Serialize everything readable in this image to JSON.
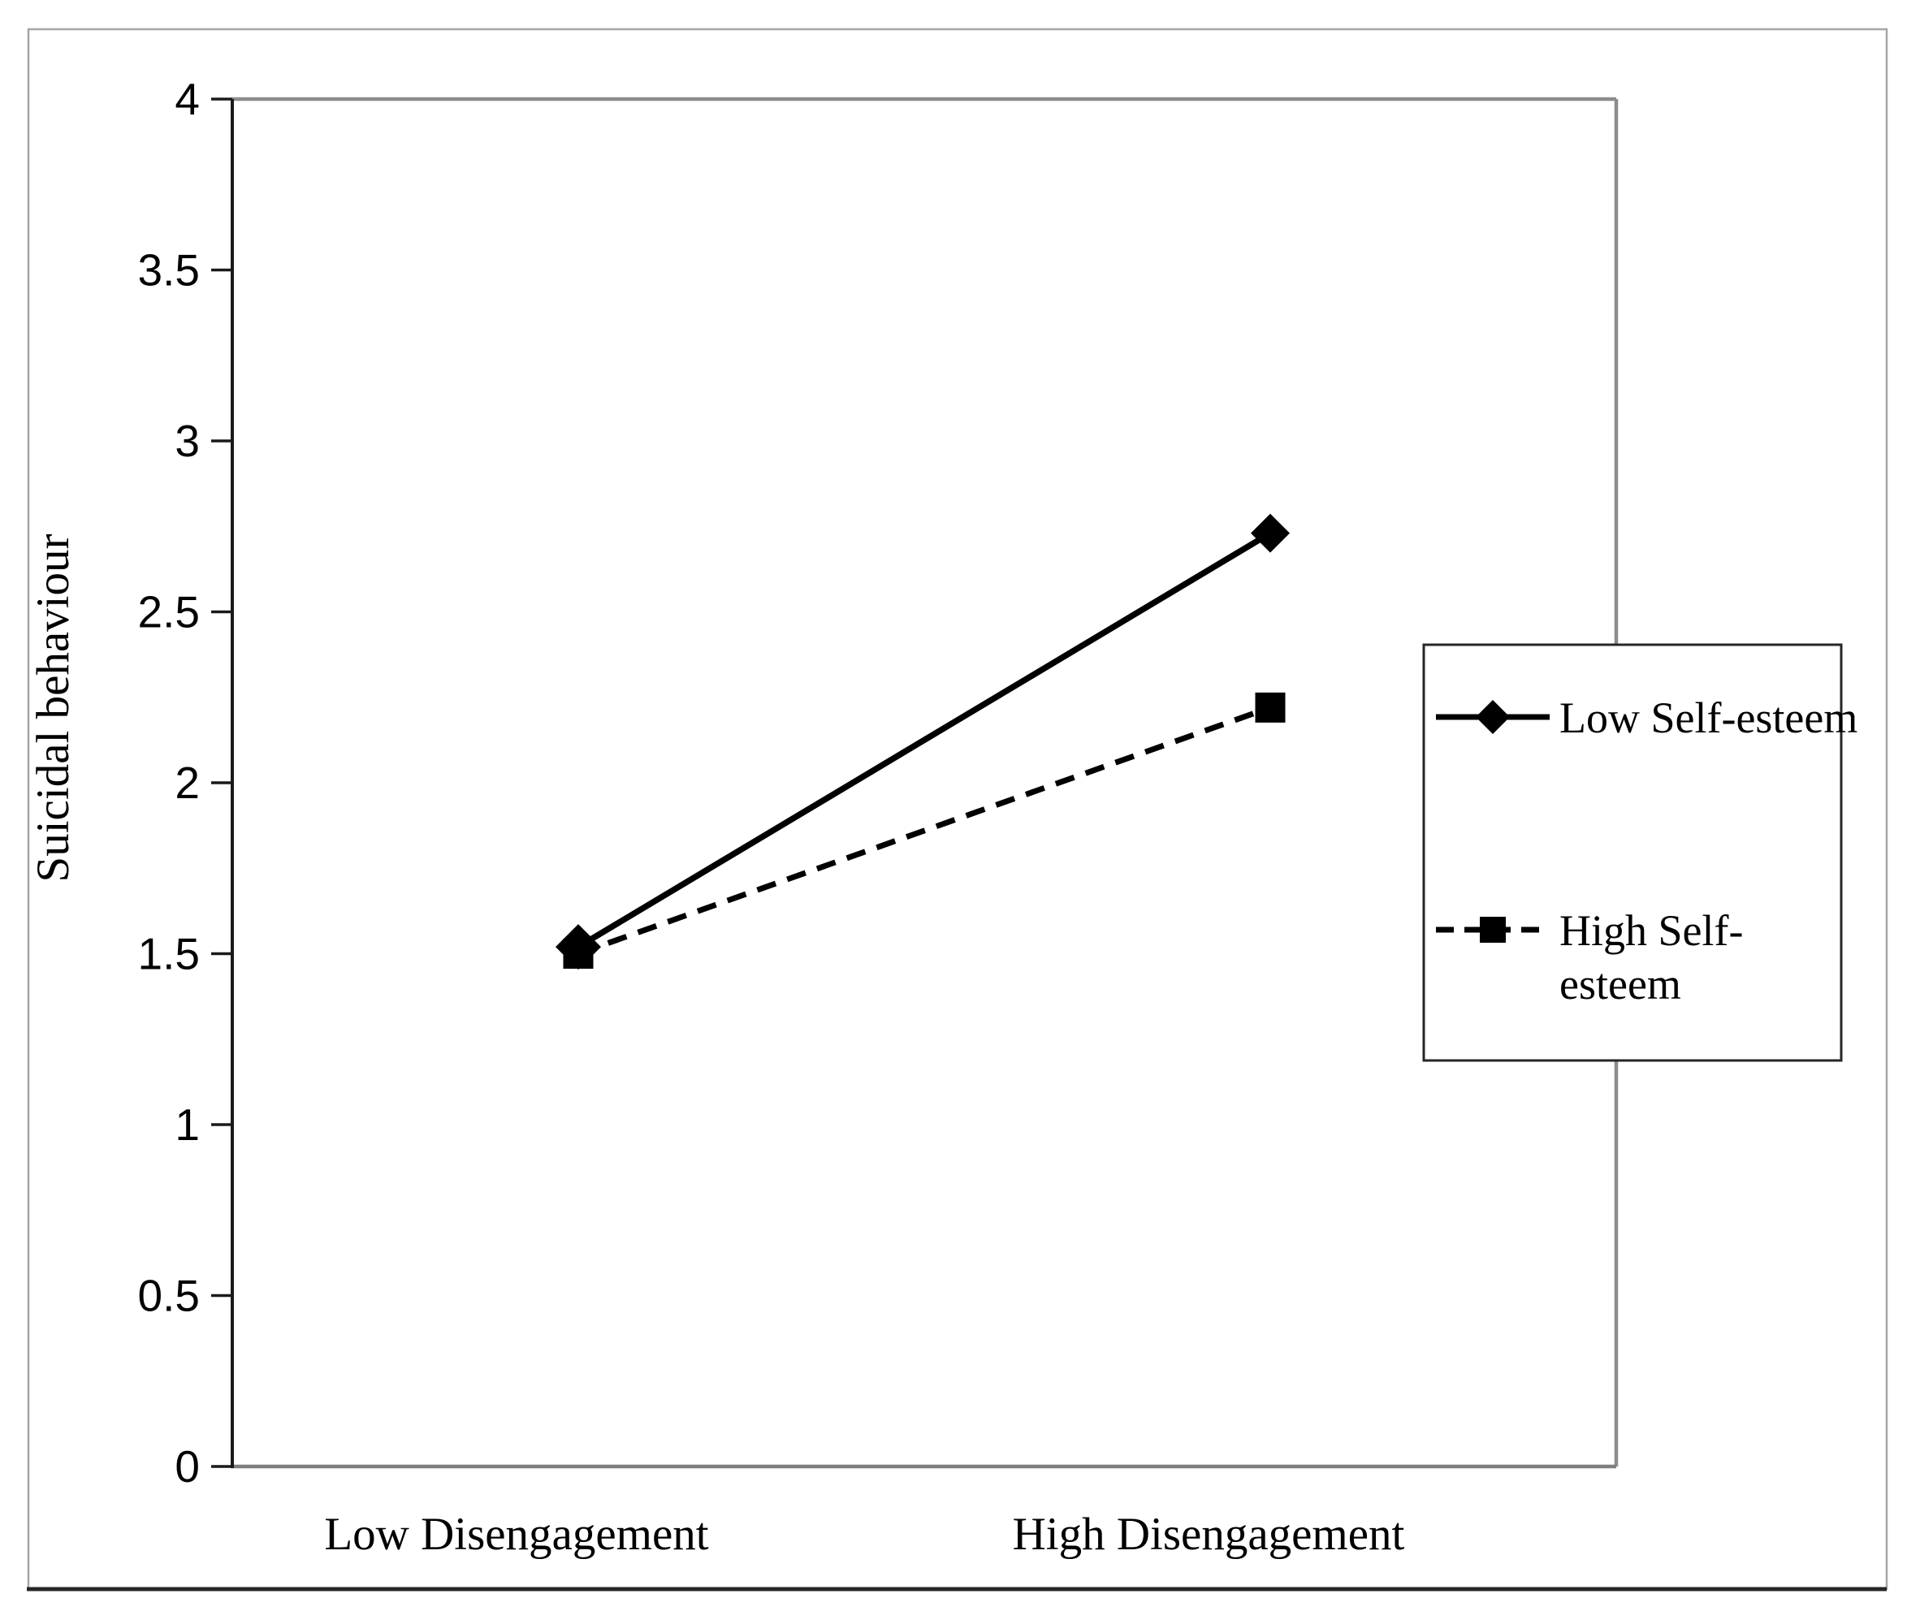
{
  "chart_data": {
    "type": "line",
    "title": "",
    "categories": [
      "Low Disengagement",
      "High Disengagement"
    ],
    "series": [
      {
        "name": "Low Self-esteem",
        "values": [
          1.52,
          2.73
        ],
        "line_style": "solid",
        "marker": "diamond"
      },
      {
        "name": "High Self-esteem",
        "values": [
          1.5,
          2.22
        ],
        "line_style": "dashed",
        "marker": "square"
      }
    ],
    "xlabel": "",
    "ylabel": "Suicidal behaviour",
    "ylim": [
      0,
      4
    ],
    "ytick_step": 0.5,
    "yticks": [
      "4",
      "3.5",
      "3",
      "2.5",
      "2",
      "1.5",
      "1",
      "0.5",
      "0"
    ],
    "grid": false,
    "legend_position": "right-overlay",
    "legend_labels": [
      [
        "Low Self-esteem"
      ],
      [
        "High Self-",
        "esteem"
      ]
    ],
    "colors": {
      "series": "#000000",
      "y_axis": "#1a1a1a",
      "x_axis": "#7f7f7f",
      "plot_border": "#8c8c8c",
      "outer_border": "#a6a6a6",
      "outer_border_bottom": "#262626",
      "legend_border": "#262626",
      "text": "#000000"
    }
  }
}
